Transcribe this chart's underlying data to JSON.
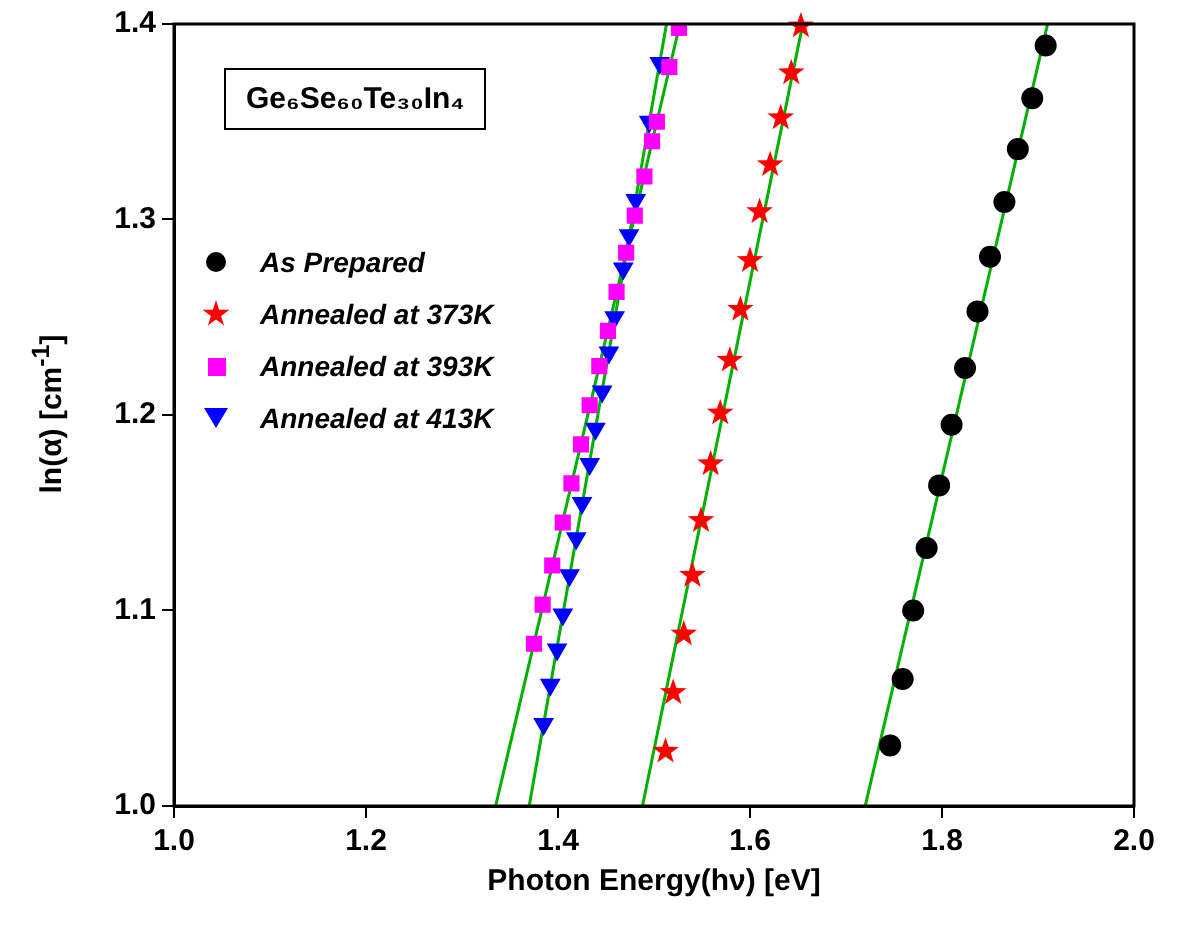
{
  "chart_data": {
    "type": "scatter",
    "xlabel": "Photon Energy(hν) [eV]",
    "ylabel": "ln(α) [cm$^{-1}$]",
    "annotations": [
      "Ge₆Se₆₀Te₃₀In₄"
    ],
    "xlim": [
      1.0,
      2.0
    ],
    "xticks": [
      {
        "value": 1.0,
        "label": "1.0"
      },
      {
        "value": 1.2,
        "label": "1.2"
      },
      {
        "value": 1.4,
        "label": "1.4"
      },
      {
        "value": 1.6,
        "label": "1.6"
      },
      {
        "value": 1.8,
        "label": "1.8"
      },
      {
        "value": 2.0,
        "label": "2.0"
      }
    ],
    "ylim": [
      1.0,
      1.4
    ],
    "yticks": [
      {
        "value": 1.0,
        "label": "1.0"
      },
      {
        "value": 1.1,
        "label": "1.1"
      },
      {
        "value": 1.2,
        "label": "1.2"
      },
      {
        "value": 1.3,
        "label": "1.3"
      },
      {
        "value": 1.4,
        "label": "1.4"
      }
    ],
    "grid": false,
    "legend": "left",
    "series": [
      {
        "name": "As Prepared",
        "type": "scatter",
        "marker": "circle",
        "color": "#000000",
        "x": [
          1.746,
          1.759,
          1.77,
          1.784,
          1.797,
          1.81,
          1.824,
          1.837,
          1.85,
          1.865,
          1.879,
          1.894,
          1.908
        ],
        "values": [
          1.031,
          1.065,
          1.1,
          1.132,
          1.164,
          1.195,
          1.224,
          1.253,
          1.281,
          1.309,
          1.336,
          1.362,
          1.389
        ]
      },
      {
        "name": "Annealed at 373K",
        "type": "scatter",
        "marker": "star",
        "color": "#ff0000",
        "x": [
          1.512,
          1.52,
          1.531,
          1.54,
          1.549,
          1.559,
          1.569,
          1.579,
          1.59,
          1.6,
          1.61,
          1.621,
          1.632,
          1.643,
          1.653
        ],
        "values": [
          1.028,
          1.058,
          1.088,
          1.118,
          1.146,
          1.175,
          1.201,
          1.228,
          1.254,
          1.279,
          1.304,
          1.328,
          1.352,
          1.375,
          1.399
        ]
      },
      {
        "name": "Annealed at 393K",
        "type": "scatter",
        "marker": "square",
        "color": "#ff00ff",
        "x": [
          1.375,
          1.384,
          1.394,
          1.405,
          1.414,
          1.424,
          1.433,
          1.443,
          1.452,
          1.461,
          1.471,
          1.48,
          1.49,
          1.498,
          1.503,
          1.516,
          1.526
        ],
        "values": [
          1.083,
          1.103,
          1.123,
          1.145,
          1.165,
          1.185,
          1.205,
          1.225,
          1.243,
          1.263,
          1.283,
          1.302,
          1.322,
          1.34,
          1.35,
          1.378,
          1.398
        ]
      },
      {
        "name": "Annealed at 413K",
        "type": "scatter",
        "marker": "triangle",
        "color": "#0000ff",
        "x": [
          1.385,
          1.392,
          1.399,
          1.405,
          1.412,
          1.419,
          1.425,
          1.433,
          1.439,
          1.446,
          1.453,
          1.459,
          1.468,
          1.474,
          1.481,
          1.495,
          1.506
        ],
        "values": [
          1.042,
          1.062,
          1.08,
          1.098,
          1.118,
          1.137,
          1.155,
          1.175,
          1.193,
          1.212,
          1.232,
          1.25,
          1.275,
          1.292,
          1.31,
          1.35,
          1.38
        ]
      },
      {
        "type": "line",
        "marker": "none",
        "color": "#00b000",
        "x": [
          1.72,
          1.91
        ],
        "values": [
          1.0,
          1.4
        ]
      },
      {
        "type": "line",
        "marker": "none",
        "color": "#00b000",
        "x": [
          1.488,
          1.655
        ],
        "values": [
          1.0,
          1.4
        ]
      },
      {
        "type": "line",
        "marker": "none",
        "color": "#00b000",
        "x": [
          1.335,
          1.527
        ],
        "values": [
          1.0,
          1.4
        ]
      },
      {
        "type": "line",
        "marker": "none",
        "color": "#00b000",
        "x": [
          1.37,
          1.513
        ],
        "values": [
          1.0,
          1.4
        ]
      }
    ]
  }
}
